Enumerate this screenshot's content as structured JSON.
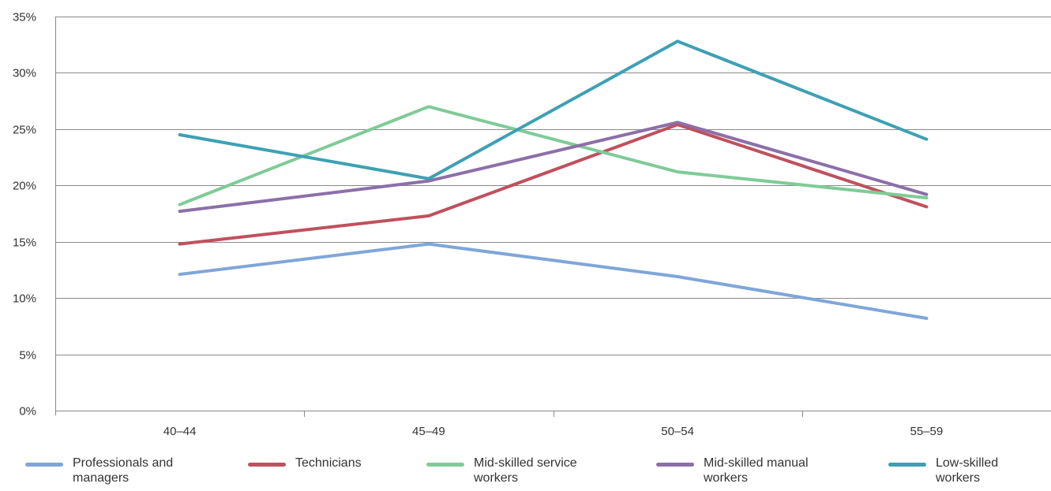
{
  "chart_data": {
    "type": "line",
    "categories": [
      "40–44",
      "45–49",
      "50–54",
      "55–59"
    ],
    "y_ticks": [
      "0%",
      "5%",
      "10%",
      "15%",
      "20%",
      "25%",
      "30%",
      "35%"
    ],
    "ylim": [
      0,
      35
    ],
    "y_unit": "%",
    "grid": "horizontal",
    "legend_position": "bottom",
    "series": [
      {
        "name": "Professionals and managers",
        "color": "#7fa6d9",
        "values": [
          12.1,
          14.8,
          11.9,
          8.2
        ]
      },
      {
        "name": "Technicians",
        "color": "#c0505d",
        "values": [
          14.8,
          17.3,
          25.4,
          18.1
        ]
      },
      {
        "name": "Mid-skilled service workers",
        "color": "#7fcb97",
        "values": [
          18.3,
          27.0,
          21.2,
          18.9
        ]
      },
      {
        "name": "Mid-skilled manual workers",
        "color": "#8c6fa8",
        "values": [
          17.7,
          20.4,
          25.6,
          19.2
        ]
      },
      {
        "name": "Low-skilled workers",
        "color": "#3ea0b4",
        "values": [
          24.5,
          20.6,
          32.8,
          24.1
        ]
      }
    ]
  },
  "legend": {
    "items": [
      {
        "line1": "Professionals and",
        "line2": "managers"
      },
      {
        "line1": "Technicians",
        "line2": ""
      },
      {
        "line1": "Mid-skilled service",
        "line2": "workers"
      },
      {
        "line1": "Mid-skilled manual",
        "line2": "workers"
      },
      {
        "line1": "Low-skilled",
        "line2": "workers"
      }
    ]
  }
}
